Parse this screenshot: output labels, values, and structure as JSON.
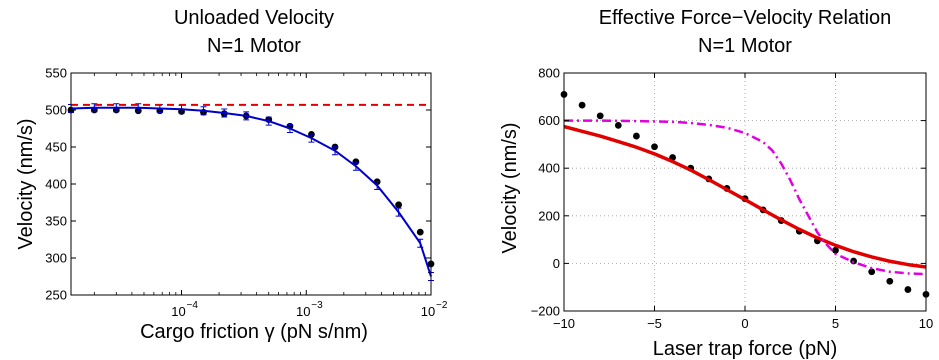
{
  "chart_data": [
    {
      "type": "scatter",
      "title": "Unloaded Velocity",
      "subtitle": "N=1 Motor",
      "xlabel": "Cargo friction γ (pN s/nm)",
      "ylabel": "Velocity (nm/s)",
      "xscale": "log",
      "xlim": [
        1.3e-05,
        0.01
      ],
      "ylim": [
        250,
        550
      ],
      "grid": false,
      "y_ticks": [
        {
          "value": 250,
          "label": "250"
        },
        {
          "value": 300,
          "label": "300"
        },
        {
          "value": 350,
          "label": "350"
        },
        {
          "value": 400,
          "label": "400"
        },
        {
          "value": 450,
          "label": "450"
        },
        {
          "value": 500,
          "label": "500"
        },
        {
          "value": 550,
          "label": "550"
        }
      ],
      "x_ticks": [
        {
          "value": 0.0001,
          "base": "10",
          "exp": "−4"
        },
        {
          "value": 0.001,
          "base": "10",
          "exp": "−3"
        },
        {
          "value": 0.01,
          "base": "10",
          "exp": "−2"
        }
      ],
      "series": [
        {
          "style": "markers",
          "color": "#000000",
          "x": [
            1.3e-05,
            2e-05,
            3e-05,
            4.5e-05,
            6.7e-05,
            0.0001,
            0.00015,
            0.00022,
            0.00033,
            0.0005,
            0.00074,
            0.0011,
            0.0017,
            0.0025,
            0.0037,
            0.0055,
            0.0082,
            0.01
          ],
          "y": [
            500,
            500,
            500,
            499,
            499,
            498,
            497,
            495,
            492,
            487,
            478,
            467,
            450,
            430,
            403,
            372,
            335,
            292
          ]
        },
        {
          "style": "solid-with-errorbars",
          "color": "#0000cc",
          "x": [
            1.3e-05,
            2e-05,
            3e-05,
            4.5e-05,
            6.7e-05,
            0.0001,
            0.00015,
            0.00022,
            0.00033,
            0.0005,
            0.00074,
            0.0011,
            0.0017,
            0.0025,
            0.0037,
            0.0055,
            0.0082,
            0.01
          ],
          "y": [
            502,
            503,
            503,
            503,
            502,
            501,
            499,
            496,
            492,
            485,
            475,
            462,
            445,
            424,
            398,
            362,
            320,
            275
          ]
        },
        {
          "style": "dashed",
          "color": "#e00000",
          "x": [
            1.3e-05,
            0.01
          ],
          "y": [
            507,
            507
          ]
        }
      ]
    },
    {
      "type": "scatter",
      "title": "Effective Force−Velocity Relation",
      "subtitle": "N=1 Motor",
      "xlabel": "Laser trap force (pN)",
      "ylabel": "Velocity (nm/s)",
      "xlim": [
        -10,
        10
      ],
      "ylim": [
        -200,
        800
      ],
      "grid": true,
      "x_ticks": [
        {
          "value": -10,
          "label": "−10"
        },
        {
          "value": -5,
          "label": "−5"
        },
        {
          "value": 0,
          "label": "0"
        },
        {
          "value": 5,
          "label": "5"
        },
        {
          "value": 10,
          "label": "10"
        }
      ],
      "y_ticks": [
        {
          "value": -200,
          "label": "−200"
        },
        {
          "value": 0,
          "label": "0"
        },
        {
          "value": 200,
          "label": "200"
        },
        {
          "value": 400,
          "label": "400"
        },
        {
          "value": 600,
          "label": "600"
        },
        {
          "value": 800,
          "label": "800"
        }
      ],
      "series": [
        {
          "style": "markers",
          "color": "#000000",
          "x": [
            -10,
            -9,
            -8,
            -7,
            -6,
            -5,
            -4,
            -3,
            -2,
            -1,
            0,
            1,
            2,
            3,
            4,
            5,
            6,
            7,
            8,
            9,
            10
          ],
          "y": [
            710,
            665,
            620,
            580,
            535,
            490,
            445,
            400,
            355,
            315,
            272,
            225,
            180,
            135,
            95,
            55,
            10,
            -35,
            -75,
            -110,
            -130
          ]
        },
        {
          "style": "solid-thick",
          "color": "#e00000",
          "x": [
            -10,
            -9,
            -8,
            -7,
            -6,
            -5,
            -4,
            -3,
            -2,
            -1,
            0,
            1,
            2,
            3,
            4,
            5,
            6,
            7,
            8,
            9,
            10
          ],
          "y": [
            575,
            555,
            535,
            512,
            488,
            460,
            428,
            392,
            352,
            310,
            268,
            225,
            183,
            143,
            107,
            76,
            49,
            27,
            9,
            -5,
            -15
          ]
        },
        {
          "style": "dash-dot",
          "color": "#e000e0",
          "x": [
            -10,
            -8,
            -6,
            -4,
            -3,
            -2,
            -1,
            0,
            1,
            1.5,
            2,
            2.5,
            3,
            3.5,
            4,
            4.5,
            5,
            6,
            7,
            8,
            9,
            10
          ],
          "y": [
            600,
            600,
            598,
            595,
            590,
            582,
            570,
            548,
            510,
            475,
            420,
            350,
            270,
            200,
            130,
            80,
            40,
            5,
            -20,
            -35,
            -42,
            -45
          ]
        }
      ]
    }
  ]
}
